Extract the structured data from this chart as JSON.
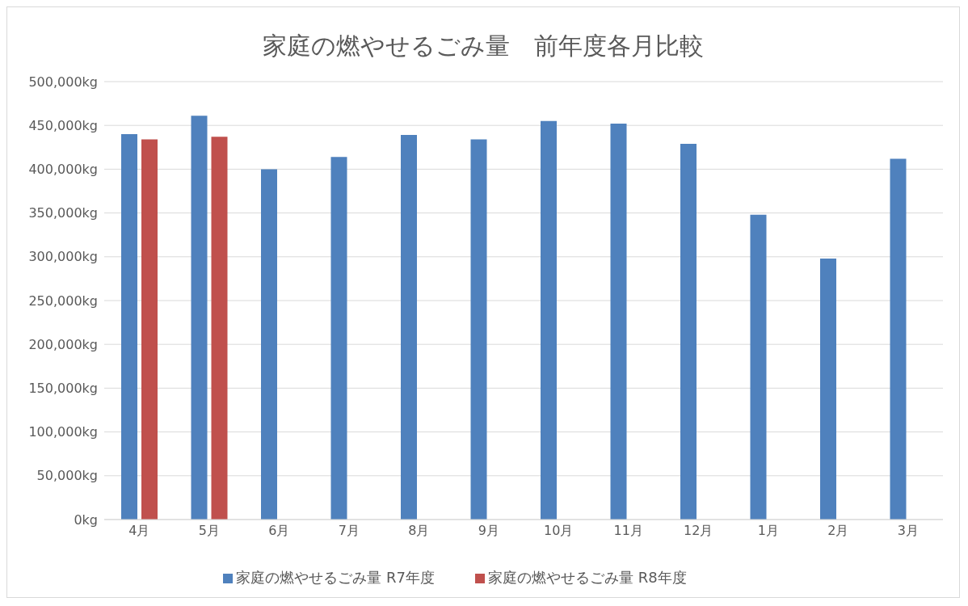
{
  "chart_data": {
    "type": "bar",
    "title": "家庭の燃やせるごみ量　前年度各月比較",
    "categories": [
      "4月",
      "5月",
      "6月",
      "7月",
      "8月",
      "9月",
      "10月",
      "11月",
      "12月",
      "1月",
      "2月",
      "3月"
    ],
    "series": [
      {
        "name": "家庭の燃やせるごみ量 R7年度",
        "color": "#4f81bd",
        "values": [
          440000,
          461000,
          400000,
          414000,
          439000,
          434000,
          455000,
          452000,
          429000,
          348000,
          298000,
          412000
        ]
      },
      {
        "name": "家庭の燃やせるごみ量 R8年度",
        "color": "#c0504d",
        "values": [
          434000,
          437000,
          null,
          null,
          null,
          null,
          null,
          null,
          null,
          null,
          null,
          null
        ]
      }
    ],
    "ylim": [
      0,
      500000
    ],
    "yticks": [
      {
        "value": 0,
        "label": "0kg"
      },
      {
        "value": 50000,
        "label": "50,000kg"
      },
      {
        "value": 100000,
        "label": "100,000kg"
      },
      {
        "value": 150000,
        "label": "150,000kg"
      },
      {
        "value": 200000,
        "label": "200,000kg"
      },
      {
        "value": 250000,
        "label": "250,000kg"
      },
      {
        "value": 300000,
        "label": "300,000kg"
      },
      {
        "value": 350000,
        "label": "350,000kg"
      },
      {
        "value": 400000,
        "label": "400,000kg"
      },
      {
        "value": 450000,
        "label": "450,000kg"
      },
      {
        "value": 500000,
        "label": "500,000kg"
      }
    ],
    "grid": "y",
    "legend": "bottom"
  }
}
